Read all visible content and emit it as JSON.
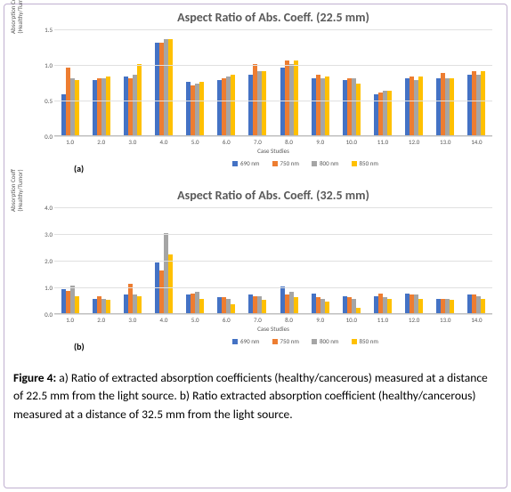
{
  "colors": {
    "s690": "#4472c4",
    "s750": "#ed7d31",
    "s800": "#a5a5a5",
    "s850": "#ffc000",
    "grid": "#e0e0e0",
    "axis": "#bfbfbf",
    "text": "#595959",
    "bg": "#ffffff"
  },
  "series_labels": [
    "690 nm",
    "750 nm",
    "800 nm",
    "850 nm"
  ],
  "chart_a": {
    "title": "Aspect Ratio of Abs. Coeff. (22.5 mm)",
    "sub": "(a)",
    "ylabel": "Absorption Coeff\n(Healthy/Tumor)",
    "xlabel": "Case Studies",
    "ylim": [
      0.0,
      1.5
    ],
    "ytick_step": 0.5,
    "categories": [
      "1.0",
      "2.0",
      "3.0",
      "4.0",
      "5.0",
      "6.0",
      "7.0",
      "8.0",
      "9.0",
      "10.0",
      "11.0",
      "12.0",
      "13.0",
      "14.0"
    ],
    "data": {
      "s690": [
        0.58,
        0.78,
        0.82,
        1.3,
        0.75,
        0.78,
        0.85,
        0.95,
        0.8,
        0.78,
        0.58,
        0.8,
        0.8,
        0.85
      ],
      "s750": [
        0.95,
        0.8,
        0.8,
        1.3,
        0.7,
        0.8,
        1.0,
        1.05,
        0.85,
        0.8,
        0.6,
        0.82,
        0.88,
        0.9
      ],
      "s800": [
        0.8,
        0.8,
        0.85,
        1.35,
        0.72,
        0.82,
        0.9,
        1.0,
        0.8,
        0.8,
        0.62,
        0.78,
        0.8,
        0.85
      ],
      "s850": [
        0.78,
        0.82,
        1.0,
        1.35,
        0.75,
        0.85,
        0.9,
        1.05,
        0.82,
        0.72,
        0.62,
        0.82,
        0.8,
        0.9
      ]
    }
  },
  "chart_b": {
    "title": "Aspect Ratio of Abs. Coeff. (32.5 mm)",
    "sub": "(b)",
    "ylabel": "Absorption Coeff\n(Healthy/Tumor)",
    "xlabel": "Case Studies",
    "ylim": [
      0.0,
      4.0
    ],
    "ytick_step": 1.0,
    "categories": [
      "1.0",
      "2.0",
      "3.0",
      "4.0",
      "5.0",
      "6.0",
      "7.0",
      "8.0",
      "9.0",
      "10.0",
      "11.0",
      "12.0",
      "13.0",
      "14.0"
    ],
    "data": {
      "s690": [
        0.9,
        0.55,
        0.7,
        1.9,
        0.7,
        0.6,
        0.7,
        1.0,
        0.75,
        0.65,
        0.65,
        0.75,
        0.55,
        0.7
      ],
      "s750": [
        0.85,
        0.65,
        1.1,
        1.6,
        0.75,
        0.6,
        0.65,
        0.7,
        0.6,
        0.6,
        0.75,
        0.7,
        0.55,
        0.7
      ],
      "s800": [
        1.05,
        0.55,
        0.7,
        3.0,
        0.8,
        0.55,
        0.65,
        0.8,
        0.55,
        0.55,
        0.6,
        0.7,
        0.55,
        0.65
      ],
      "s850": [
        0.65,
        0.5,
        0.65,
        2.2,
        0.55,
        0.35,
        0.5,
        0.6,
        0.45,
        0.2,
        0.55,
        0.55,
        0.5,
        0.55
      ]
    }
  },
  "caption": {
    "label": "Figure 4:",
    "text_a": " a) Ratio of extracted absorption coefficients (healthy/cancerous) measured at a distance of 22.5 mm from the light source. b) Ratio extracted absorption coefficient (healthy/cancerous) measured at a distance of 32.5 mm from the light source."
  }
}
